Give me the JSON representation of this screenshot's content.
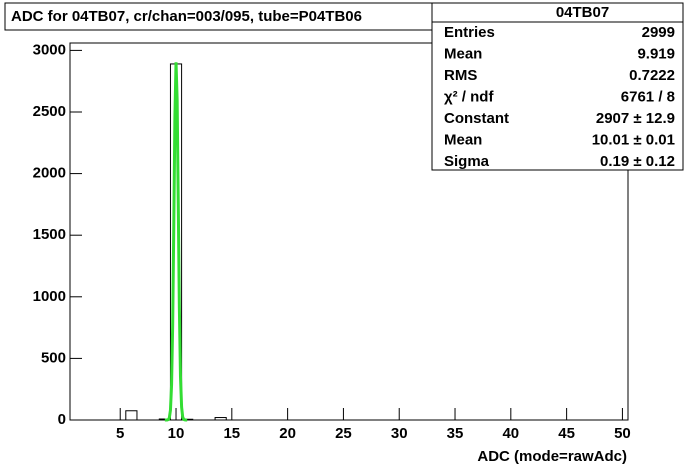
{
  "chart_data": {
    "type": "histogram",
    "title": "ADC for 04TB07,  cr/chan=003/095,  tube=P04TB06",
    "x_label": "ADC (mode=rawAdc)",
    "color": "#000000",
    "bins": [
      0.5,
      1.5,
      2.5,
      3.5,
      4.5,
      5.5,
      6.5,
      7.5,
      8.5,
      9.5,
      10.5,
      11.5,
      12.5,
      13.5,
      14.5,
      15.5,
      16.5,
      17.5,
      18.5,
      19.5,
      20.5,
      21.5,
      22.5,
      23.5,
      24.5,
      25.5,
      26.5,
      27.5,
      28.5,
      29.5,
      30.5,
      31.5,
      32.5,
      33.5,
      34.5,
      35.5,
      36.5,
      37.5,
      38.5,
      39.5,
      40.5,
      41.5,
      42.5,
      43.5,
      44.5,
      45.5,
      46.5,
      47.5,
      48.5,
      49.5,
      50.5
    ],
    "counts": [
      0,
      0,
      0,
      0,
      0,
      75,
      0,
      0,
      8,
      2890,
      6,
      0,
      0,
      20,
      0,
      0,
      0,
      0,
      0,
      0,
      0,
      0,
      0,
      0,
      0,
      0,
      0,
      0,
      0,
      0,
      0,
      0,
      0,
      0,
      0,
      0,
      0,
      0,
      0,
      0,
      0,
      0,
      0,
      0,
      0,
      0,
      0,
      0,
      0,
      0
    ],
    "fit": {
      "color": "#33dd33",
      "x": [
        9.0,
        9.1,
        9.2,
        9.3,
        9.4,
        9.5,
        9.6,
        9.7,
        9.8,
        9.9,
        10.0,
        10.1,
        10.2,
        10.3,
        10.4,
        10.5,
        10.6,
        10.7,
        10.8,
        10.9,
        11.0
      ],
      "values": [
        0,
        0,
        0,
        3,
        17,
        79,
        283,
        768,
        1579,
        2458,
        2903,
        2599,
        1763,
        907,
        354,
        105,
        23,
        4,
        1,
        0,
        0
      ]
    },
    "xlim": [
      0.5,
      50.5
    ],
    "xticks": [
      5,
      10,
      15,
      20,
      25,
      30,
      35,
      40,
      45,
      50
    ],
    "ylim": [
      0,
      3060
    ],
    "yticks": [
      0,
      500,
      1000,
      1500,
      2000,
      2500,
      3000
    ],
    "stats": {
      "header": "04TB07",
      "rows": [
        [
          "Entries",
          "2999"
        ],
        [
          "Mean",
          "9.919"
        ],
        [
          "RMS",
          "0.7222"
        ],
        [
          "χ² / ndf",
          "6761 / 8"
        ],
        [
          "Constant",
          "2907 ± 12.9"
        ],
        [
          "Mean",
          "10.01 ± 0.01"
        ],
        [
          "Sigma",
          "0.19 ± 0.12"
        ]
      ]
    }
  }
}
